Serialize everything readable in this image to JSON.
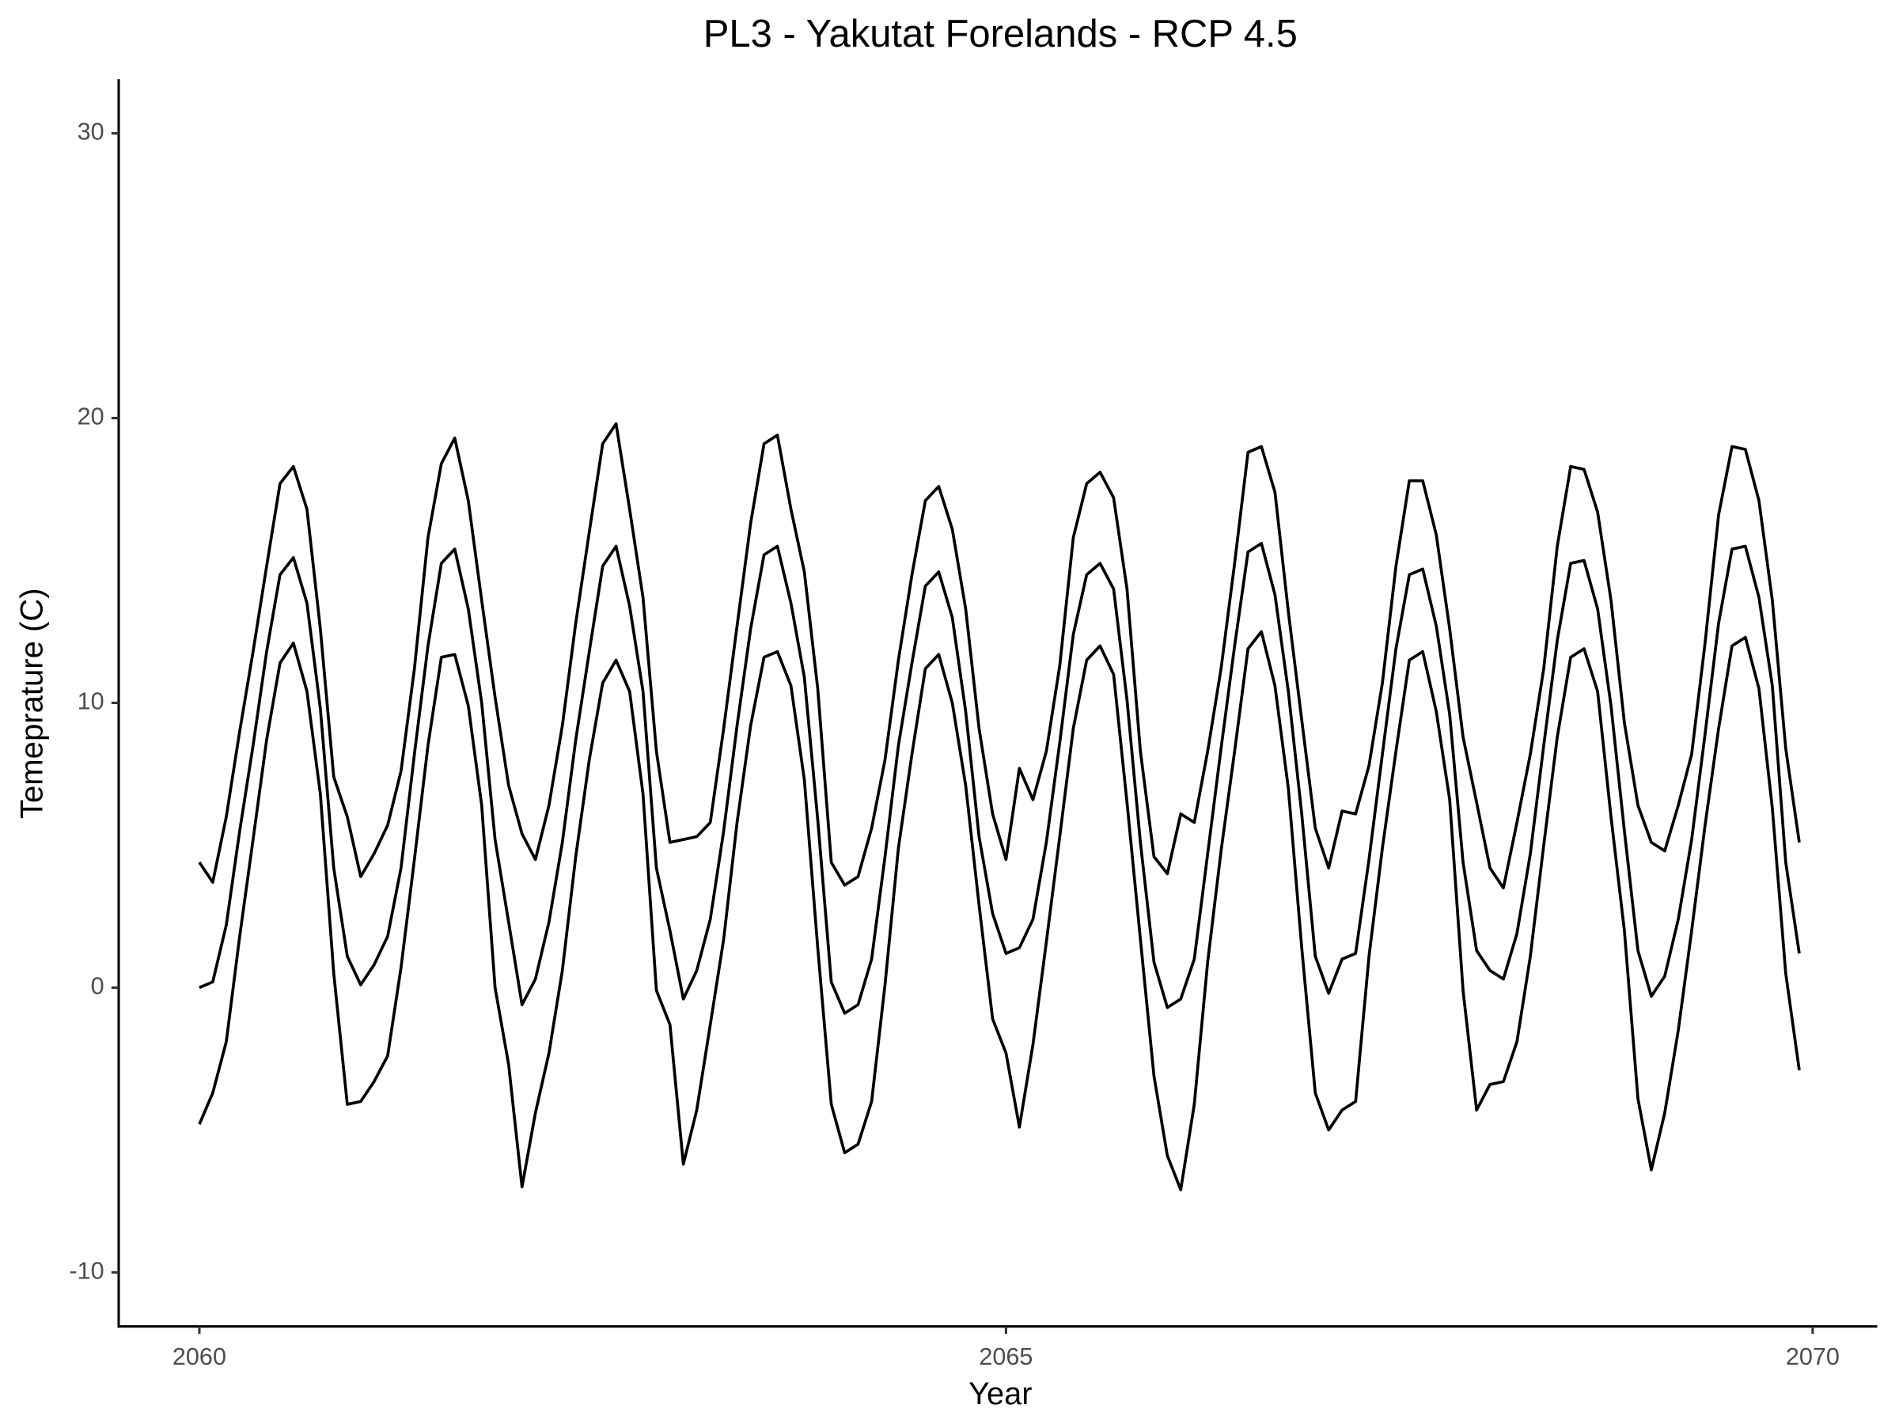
{
  "chart_data": {
    "type": "line",
    "title": "PL3 - Yakutat Forelands - RCP 4.5",
    "xlabel": "Year",
    "ylabel": "Temeprature (C)",
    "x": [
      2060,
      2060.083,
      2060.167,
      2060.25,
      2060.333,
      2060.417,
      2060.5,
      2060.583,
      2060.667,
      2060.75,
      2060.833,
      2060.917,
      2061,
      2061.083,
      2061.167,
      2061.25,
      2061.333,
      2061.417,
      2061.5,
      2061.583,
      2061.667,
      2061.75,
      2061.833,
      2061.917,
      2062,
      2062.083,
      2062.167,
      2062.25,
      2062.333,
      2062.417,
      2062.5,
      2062.583,
      2062.667,
      2062.75,
      2062.833,
      2062.917,
      2063,
      2063.083,
      2063.167,
      2063.25,
      2063.333,
      2063.417,
      2063.5,
      2063.583,
      2063.667,
      2063.75,
      2063.833,
      2063.917,
      2064,
      2064.083,
      2064.167,
      2064.25,
      2064.333,
      2064.417,
      2064.5,
      2064.583,
      2064.667,
      2064.75,
      2064.833,
      2064.917,
      2065,
      2065.083,
      2065.167,
      2065.25,
      2065.333,
      2065.417,
      2065.5,
      2065.583,
      2065.667,
      2065.75,
      2065.833,
      2065.917,
      2066,
      2066.083,
      2066.167,
      2066.25,
      2066.333,
      2066.417,
      2066.5,
      2066.583,
      2066.667,
      2066.75,
      2066.833,
      2066.917,
      2067,
      2067.083,
      2067.167,
      2067.25,
      2067.333,
      2067.417,
      2067.5,
      2067.583,
      2067.667,
      2067.75,
      2067.833,
      2067.917,
      2068,
      2068.083,
      2068.167,
      2068.25,
      2068.333,
      2068.417,
      2068.5,
      2068.583,
      2068.667,
      2068.75,
      2068.833,
      2068.917,
      2069,
      2069.083,
      2069.167,
      2069.25,
      2069.333,
      2069.417,
      2069.5,
      2069.583,
      2069.667,
      2069.75,
      2069.833,
      2069.917
    ],
    "series": [
      {
        "color": "#000000",
        "values": [
          4.4,
          3.7,
          6.0,
          9.0,
          11.8,
          14.8,
          17.7,
          18.3,
          16.8,
          12.6,
          7.4,
          6.0,
          3.9,
          4.7,
          5.7,
          7.6,
          11.2,
          15.8,
          18.4,
          19.3,
          17.1,
          13.6,
          10.2,
          7.1,
          5.4,
          4.5,
          6.4,
          9.2,
          12.8,
          16.0,
          19.1,
          19.8,
          16.8,
          13.7,
          8.3,
          5.1,
          5.2,
          5.3,
          5.8,
          9.1,
          12.7,
          16.3,
          19.1,
          19.4,
          16.8,
          14.6,
          10.5,
          4.4,
          3.6,
          3.9,
          5.6,
          8.0,
          11.5,
          14.5,
          17.1,
          17.6,
          16.1,
          13.3,
          9.1,
          6.1,
          4.5,
          7.7,
          6.6,
          8.3,
          11.3,
          15.8,
          17.7,
          18.1,
          17.2,
          14.0,
          8.3,
          4.6,
          4.0,
          6.1,
          5.8,
          8.3,
          11.2,
          14.9,
          18.8,
          19.0,
          17.4,
          13.2,
          9.4,
          5.6,
          4.2,
          6.2,
          6.1,
          7.8,
          10.7,
          14.8,
          17.8,
          17.8,
          15.9,
          12.6,
          8.8,
          6.5,
          4.2,
          3.5,
          5.8,
          8.2,
          11.2,
          15.5,
          18.3,
          18.2,
          16.7,
          13.6,
          9.3,
          6.4,
          5.1,
          4.8,
          6.4,
          8.2,
          12.1,
          16.6,
          19.0,
          18.9,
          17.1,
          13.6,
          8.4,
          5.1
        ]
      },
      {
        "color": "#000000",
        "values": [
          0,
          0.2,
          2.2,
          5.5,
          8.5,
          11.8,
          14.5,
          15.1,
          13.5,
          9.8,
          4.2,
          1.1,
          0.1,
          0.8,
          1.8,
          4.2,
          8.2,
          12.0,
          14.9,
          15.4,
          13.3,
          10.0,
          5.2,
          2.3,
          -0.6,
          0.3,
          2.3,
          5.1,
          8.7,
          11.8,
          14.8,
          15.5,
          13.4,
          10.4,
          4.2,
          2.0,
          -0.4,
          0.6,
          2.4,
          5.5,
          9.2,
          12.6,
          15.2,
          15.5,
          13.5,
          10.9,
          5.9,
          0.2,
          -0.9,
          -0.6,
          1.0,
          4.6,
          8.5,
          11.4,
          14.1,
          14.6,
          13.0,
          9.7,
          5.3,
          2.6,
          1.2,
          1.4,
          2.4,
          5.1,
          8.6,
          12.4,
          14.5,
          14.9,
          14.0,
          10.1,
          5.1,
          0.9,
          -0.7,
          -0.4,
          1.0,
          4.7,
          8.4,
          12.0,
          15.3,
          15.6,
          13.8,
          10.4,
          6.1,
          1.1,
          -0.2,
          1.0,
          1.2,
          4.5,
          8.2,
          11.9,
          14.5,
          14.7,
          12.7,
          9.6,
          4.4,
          1.3,
          0.6,
          0.3,
          1.9,
          4.7,
          8.5,
          12.2,
          14.9,
          15.0,
          13.3,
          9.9,
          5.5,
          1.3,
          -0.3,
          0.4,
          2.4,
          5.2,
          8.9,
          12.8,
          15.4,
          15.5,
          13.7,
          10.6,
          4.4,
          1.2
        ]
      },
      {
        "color": "#000000",
        "values": [
          -4.8,
          -3.7,
          -1.9,
          1.8,
          5.2,
          8.7,
          11.4,
          12.1,
          10.4,
          6.8,
          0.5,
          -4.1,
          -4.0,
          -3.3,
          -2.4,
          0.7,
          4.5,
          8.5,
          11.6,
          11.7,
          9.9,
          6.4,
          0,
          -2.7,
          -7.0,
          -4.4,
          -2.3,
          0.6,
          4.6,
          8.0,
          10.7,
          11.5,
          10.4,
          6.8,
          -0.1,
          -1.3,
          -6.2,
          -4.3,
          -1.3,
          1.7,
          5.8,
          9.2,
          11.6,
          11.8,
          10.6,
          7.3,
          1.4,
          -4.1,
          -5.8,
          -5.5,
          -4.0,
          0.1,
          4.9,
          8.2,
          11.2,
          11.7,
          10.0,
          7.1,
          2.9,
          -1.1,
          -2.3,
          -4.9,
          -2.0,
          1.6,
          5.3,
          9.1,
          11.5,
          12.0,
          11.0,
          6.5,
          1.7,
          -3.1,
          -5.9,
          -7.1,
          -4.1,
          0.9,
          4.8,
          8.3,
          11.9,
          12.5,
          10.6,
          7.0,
          1.4,
          -3.7,
          -5.0,
          -4.3,
          -4.0,
          1.1,
          4.9,
          8.3,
          11.5,
          11.8,
          9.7,
          6.6,
          -0.1,
          -4.3,
          -3.4,
          -3.3,
          -1.9,
          1.1,
          5.0,
          8.8,
          11.6,
          11.9,
          10.4,
          6.0,
          2.0,
          -3.9,
          -6.4,
          -4.4,
          -1.5,
          2.0,
          5.7,
          9.1,
          12.0,
          12.3,
          10.5,
          6.3,
          0.5,
          -2.9
        ]
      }
    ],
    "xlim": [
      2059.5,
      2070.4
    ],
    "xticks": [
      2060,
      2065,
      2070
    ],
    "ylim": [
      -11.9,
      31.9
    ],
    "yticks": [
      -10,
      0,
      10,
      20,
      30
    ],
    "grid": false
  }
}
